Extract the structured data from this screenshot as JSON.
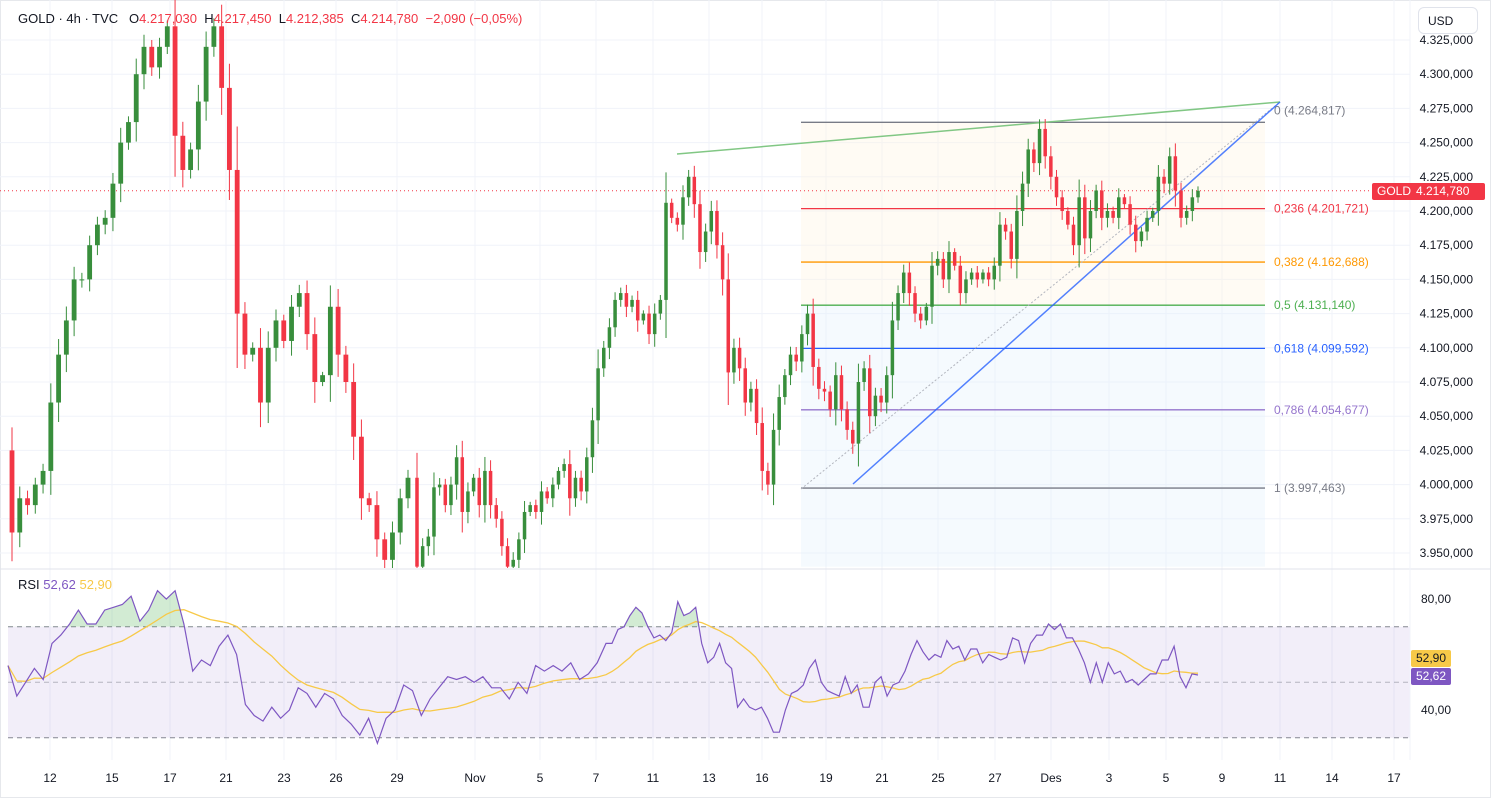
{
  "header": {
    "symbol": "GOLD · 4h · TVC",
    "open_label": "O",
    "open": "4.217,030",
    "high_label": "H",
    "high": "4.217,450",
    "low_label": "L",
    "low": "4.212,385",
    "close_label": "C",
    "close": "4.214,780",
    "change": "−2,090 (−0,05%)"
  },
  "currency_button": "USD",
  "last_price": {
    "symbol_tag": "GOLD",
    "value": "4.214,780",
    "color": "#f23645"
  },
  "colors": {
    "up": "#388e3c",
    "down": "#f23645",
    "rsi": "#7e57c2",
    "rsi_ma": "#f7c948",
    "trend_green": "#81c784",
    "trend_blue": "#2962ff"
  },
  "price_axis": [
    "4.325,000",
    "4.300,000",
    "4.275,000",
    "4.250,000",
    "4.225,000",
    "4.200,000",
    "4.175,000",
    "4.150,000",
    "4.125,000",
    "4.100,000",
    "4.075,000",
    "4.050,000",
    "4.025,000",
    "4.000,000",
    "3.975,000",
    "3.950,000"
  ],
  "time_axis": [
    "12",
    "15",
    "17",
    "21",
    "23",
    "26",
    "29",
    "Nov",
    "5",
    "7",
    "11",
    "13",
    "16",
    "19",
    "21",
    "25",
    "27",
    "Des",
    "3",
    "5",
    "9",
    "11",
    "14",
    "17"
  ],
  "fibonacci": [
    {
      "level": "0",
      "price": 4264.817,
      "label": "0 (4.264,817)",
      "color": "#787b86"
    },
    {
      "level": "0,236",
      "price": 4201.721,
      "label": "0,236 (4.201,721)",
      "color": "#f23645"
    },
    {
      "level": "0,382",
      "price": 4162.688,
      "label": "0,382 (4.162,688)",
      "color": "#ff9800"
    },
    {
      "level": "0,5",
      "price": 4131.14,
      "label": "0,5 (4.131,140)",
      "color": "#4caf50"
    },
    {
      "level": "0,618",
      "price": 4099.592,
      "label": "0,618 (4.099,592)",
      "color": "#2962ff"
    },
    {
      "level": "0,786",
      "price": 4054.677,
      "label": "0,786 (4.054,677)",
      "color": "#9575cd"
    },
    {
      "level": "1",
      "price": 3997.463,
      "label": "1 (3.997,463)",
      "color": "#787b86"
    }
  ],
  "rsi": {
    "label": "RSI",
    "value": "52,62",
    "ma_value": "52,90",
    "axis": [
      "80,00",
      "40,00"
    ],
    "levels": [
      70,
      50,
      30
    ]
  },
  "chart_data": {
    "type": "candlestick",
    "symbol": "GOLD",
    "interval": "4h",
    "ylim": [
      3935,
      4340
    ],
    "first_open": 4025,
    "close_segments": [
      [
        3965,
        3990,
        3985,
        4000,
        4010,
        4060,
        4095,
        4120,
        4150,
        4150,
        4175,
        4190,
        4195,
        4220,
        4250,
        4265,
        4300,
        4320,
        4305,
        4320,
        4335,
        4255,
        4230,
        4245,
        4280,
        4320,
        4335,
        4290,
        4230,
        4125,
        4095,
        4100,
        4060,
        4100,
        4120,
        4105,
        4130,
        4140,
        4110,
        4075,
        4080,
        4130,
        4095,
        4075,
        4035,
        3990,
        3985,
        3960,
        3945,
        3965,
        3990,
        4005
      ],
      [
        3940,
        3955,
        3962,
        3998,
        4000,
        3985,
        4000,
        4020,
        3980,
        3995,
        4005,
        3985,
        4010,
        3985,
        3975,
        3955,
        3940,
        3945,
        3960,
        3980,
        3985,
        3980,
        3995,
        3990,
        4000,
        4010,
        4015,
        3990,
        4005,
        3995,
        4020,
        4047,
        4085,
        4100,
        4115,
        4135,
        4140,
        4130,
        4135,
        4120,
        4125,
        4110,
        4125,
        4135,
        4206,
        4195,
        4190,
        4210,
        4225,
        4205,
        4170,
        4185,
        4200,
        4175,
        4150,
        4082,
        4100,
        4085,
        4060,
        4070,
        4045,
        4010,
        4000,
        4040,
        4064,
        4080,
        4095,
        4090,
        4110,
        4125,
        4086,
        4070,
        4068,
        4055,
        4080,
        4055,
        4040,
        4030,
        4075,
        4085,
        4050,
        4065,
        4060,
        4080,
        4120,
        4140,
        4155,
        4140,
        4125,
        4120,
        4130,
        4160,
        4165,
        4150,
        4170,
        4160,
        4140,
        4150,
        4155,
        4150,
        4155,
        4150,
        4160,
        4190,
        4185,
        4165,
        4200,
        4220,
        4245,
        4235,
        4260,
        4240,
        4225,
        4210,
        4200,
        4190,
        4175,
        4210,
        4180,
        4200,
        4215,
        4195,
        4200,
        4195,
        4210,
        4205,
        4190,
        4178,
        4185,
        4195,
        4200,
        4225,
        4220,
        4240,
        4215,
        4195,
        4200,
        4210,
        4214.78
      ]
    ],
    "rsi_segments": [
      [
        56,
        45,
        50,
        55,
        51,
        64,
        67,
        71,
        76,
        71,
        71,
        76,
        77,
        78,
        81,
        72,
        76,
        83,
        80,
        83,
        71,
        54,
        58,
        56,
        63,
        67,
        60,
        42,
        38,
        36,
        41,
        37,
        40,
        48,
        46,
        41,
        46,
        44,
        38,
        35,
        31,
        37,
        28,
        37,
        40,
        49,
        47,
        38,
        44,
        48,
        52,
        51,
        52,
        50,
        52,
        48,
        48,
        44,
        50,
        46,
        56,
        54,
        56,
        54,
        57,
        51,
        53,
        57,
        64
      ],
      [
        64,
        69,
        70,
        74,
        77,
        75,
        70,
        66,
        67,
        65,
        68,
        79,
        74,
        75,
        77,
        64,
        57,
        59,
        64,
        57,
        55,
        41,
        44,
        41,
        40,
        41,
        37,
        32,
        32,
        40,
        46,
        47,
        49,
        55,
        58,
        50,
        47,
        46,
        45,
        52,
        46,
        49,
        41,
        41,
        50,
        52,
        45,
        49,
        50,
        54,
        60,
        65,
        61,
        58,
        60,
        59,
        65,
        62,
        63,
        58,
        62,
        62,
        57,
        60,
        59,
        58,
        59,
        66,
        65,
        57,
        64,
        67,
        67,
        71,
        69,
        71,
        66,
        66,
        62,
        57,
        50,
        57,
        50,
        57,
        53,
        54,
        50,
        51,
        49,
        51,
        53,
        53,
        58,
        58,
        63,
        52,
        48,
        53,
        52.62
      ]
    ],
    "rsi_ylim": [
      25,
      85
    ]
  }
}
